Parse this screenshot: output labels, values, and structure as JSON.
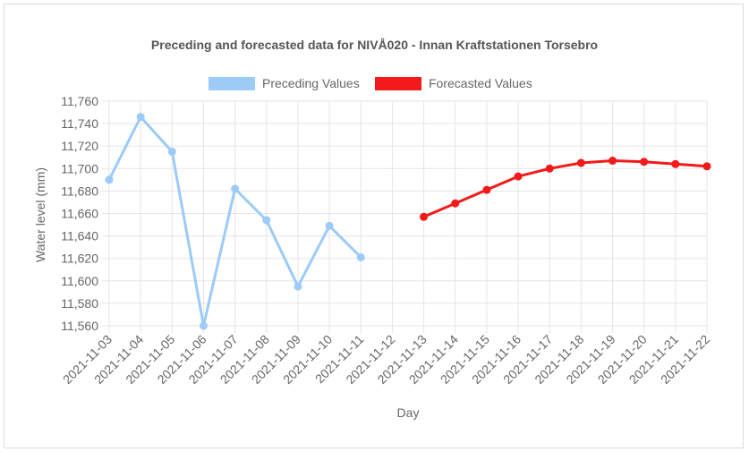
{
  "chart_data": {
    "type": "line",
    "title": "Preceding and forecasted data for NIVÅ020 - Innan Kraftstationen Torsebro",
    "xlabel": "Day",
    "ylabel": "Water level (mm)",
    "categories": [
      "2021-11-03",
      "2021-11-04",
      "2021-11-05",
      "2021-11-06",
      "2021-11-07",
      "2021-11-08",
      "2021-11-09",
      "2021-11-10",
      "2021-11-11",
      "2021-11-12",
      "2021-11-13",
      "2021-11-14",
      "2021-11-15",
      "2021-11-16",
      "2021-11-17",
      "2021-11-18",
      "2021-11-19",
      "2021-11-20",
      "2021-11-21",
      "2021-11-22"
    ],
    "ylim": [
      11560,
      11760
    ],
    "yticks": [
      "11,560",
      "11,580",
      "11,600",
      "11,620",
      "11,640",
      "11,660",
      "11,680",
      "11,700",
      "11,720",
      "11,740",
      "11,760"
    ],
    "grid": true,
    "legend_position": "top",
    "series": [
      {
        "name": "Preceding Values",
        "color": "#9ccbf7",
        "values": [
          11690,
          11746,
          11715,
          11560,
          11682,
          11654,
          11595,
          11649,
          11621,
          null,
          null,
          null,
          null,
          null,
          null,
          null,
          null,
          null,
          null,
          null
        ]
      },
      {
        "name": "Forecasted Values",
        "color": "#f21a1a",
        "values": [
          null,
          null,
          null,
          null,
          null,
          null,
          null,
          null,
          null,
          null,
          11657,
          11669,
          11681,
          11693,
          11700,
          11705,
          11707,
          11706,
          11704,
          11702
        ]
      }
    ]
  }
}
